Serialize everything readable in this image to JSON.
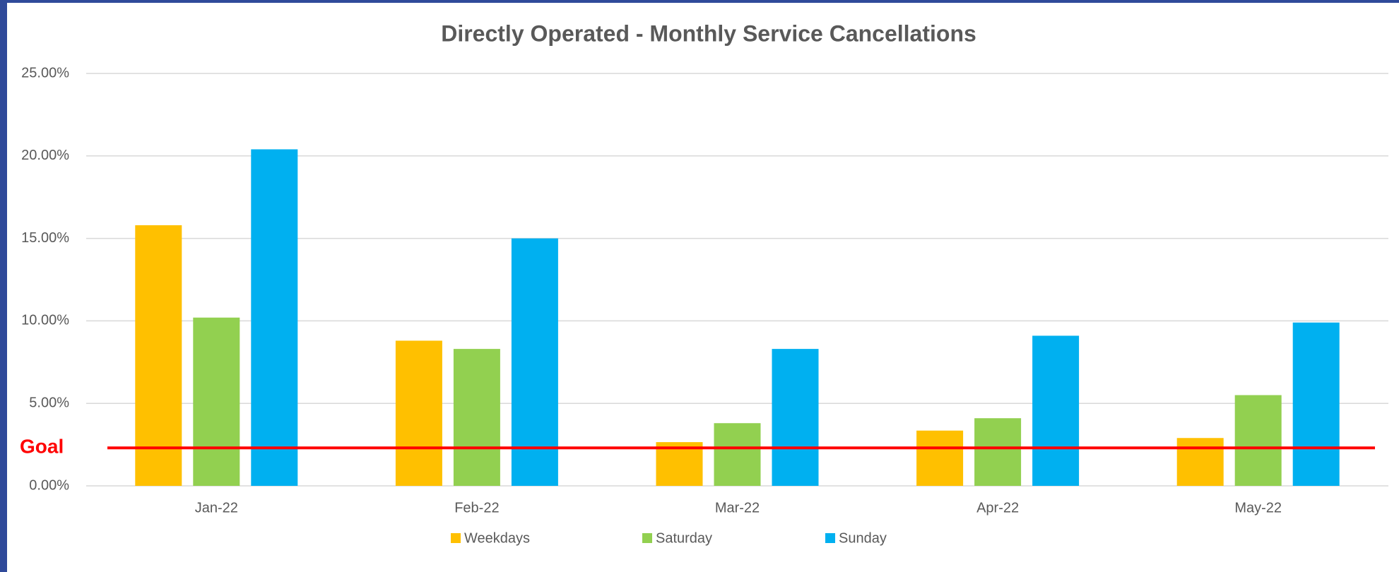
{
  "chart_data": {
    "type": "bar",
    "title": "Directly Operated - Monthly Service Cancellations",
    "categories": [
      "Jan-22",
      "Feb-22",
      "Mar-22",
      "Apr-22",
      "May-22"
    ],
    "series": [
      {
        "name": "Weekdays",
        "color": "#ffc000",
        "values": [
          15.8,
          8.8,
          2.65,
          3.35,
          2.9
        ]
      },
      {
        "name": "Saturday",
        "color": "#92d050",
        "values": [
          10.2,
          8.3,
          3.8,
          4.1,
          5.5
        ]
      },
      {
        "name": "Sunday",
        "color": "#00b0f0",
        "values": [
          20.4,
          15.0,
          8.3,
          9.1,
          9.9
        ]
      }
    ],
    "ylim": [
      0,
      25
    ],
    "yticks": [
      {
        "value": 0,
        "label": "0.00%"
      },
      {
        "value": 5,
        "label": "5.00%"
      },
      {
        "value": 10,
        "label": "10.00%"
      },
      {
        "value": 15,
        "label": "15.00%"
      },
      {
        "value": 20,
        "label": "20.00%"
      },
      {
        "value": 25,
        "label": "25.00%"
      }
    ],
    "grid": true,
    "legend": "bottom",
    "goal": {
      "label": "Goal",
      "value": 2.3,
      "color": "#ff0000"
    }
  }
}
